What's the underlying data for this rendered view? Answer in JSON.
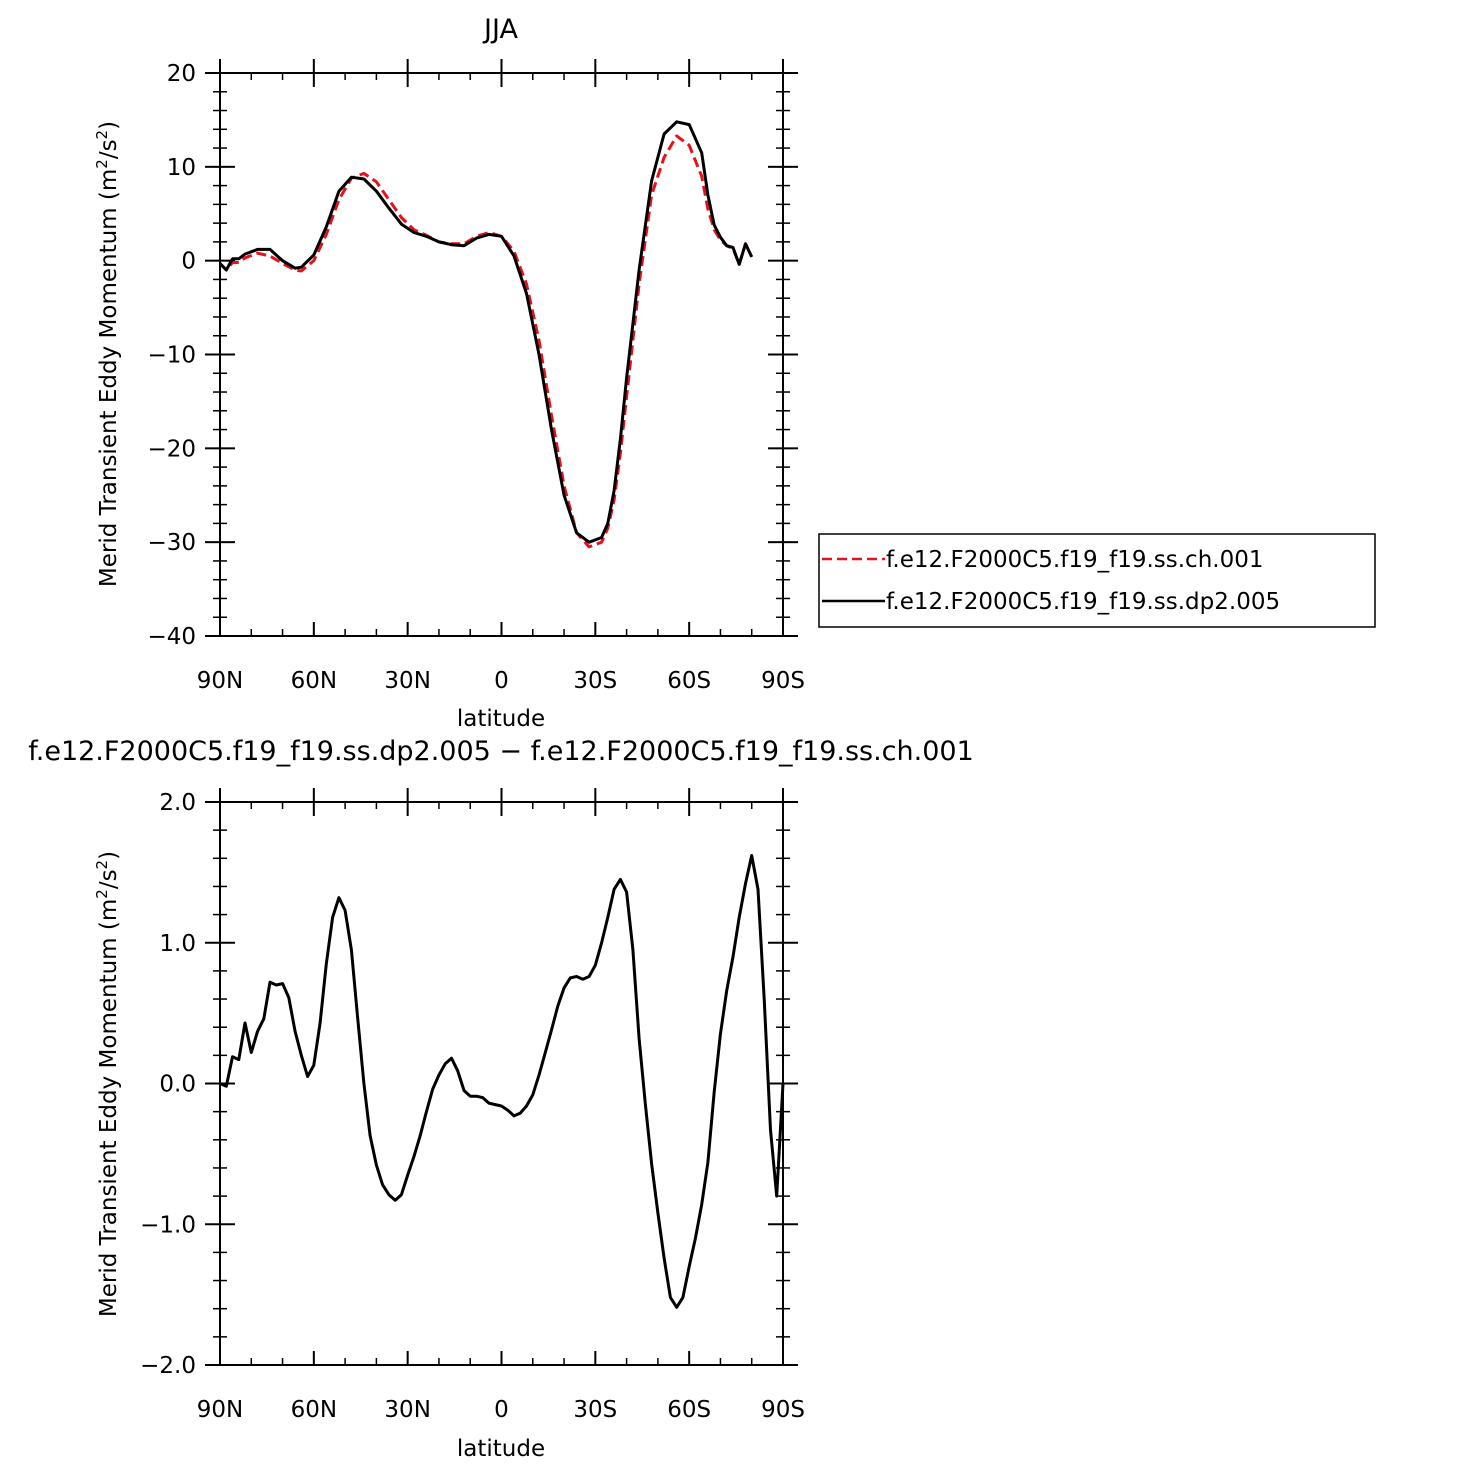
{
  "chart_data": [
    {
      "type": "line",
      "title": "JJA",
      "xlabel": "latitude",
      "ylabel": "Merid Transient Eddy Momentum (m²/s²)",
      "xlim": [
        90,
        -90
      ],
      "ylim": [
        -40,
        20
      ],
      "x_ticks": [
        90,
        60,
        30,
        0,
        -30,
        -60,
        -90
      ],
      "x_tick_labels": [
        "90N",
        "60N",
        "30N",
        "0",
        "30S",
        "60S",
        "90S"
      ],
      "y_ticks": [
        -40,
        -30,
        -20,
        -10,
        0,
        10,
        20
      ],
      "y_tick_labels": [
        "−40",
        "−30",
        "−20",
        "−10",
        "0",
        "10",
        "20"
      ],
      "legend": {
        "placement": "right",
        "entries": [
          "f.e12.F2000C5.f19_f19.ss.ch.001",
          "f.e12.F2000C5.f19_f19.ss.dp2.005"
        ]
      },
      "series": [
        {
          "name": "f.e12.F2000C5.f19_f19.ss.ch.001",
          "color": "#e8101a",
          "dash": true,
          "x": [
            90,
            88,
            86,
            84,
            82,
            78,
            74,
            70,
            66,
            64,
            60,
            56,
            52,
            48,
            44,
            40,
            36,
            32,
            28,
            24,
            20,
            16,
            12,
            8,
            4,
            0,
            -4,
            -8,
            -12,
            -16,
            -20,
            -24,
            -28,
            -32,
            -34,
            -36,
            -38,
            -40,
            -44,
            -48,
            -52,
            -56,
            -60,
            -64,
            -66,
            -68,
            -70,
            -72,
            -74,
            -76,
            -78,
            -80,
            -82,
            -84,
            -86,
            -88,
            -90
          ],
          "y": [
            -0.3,
            -1.0,
            -0.2,
            -0.2,
            0.3,
            0.8,
            0.5,
            -0.3,
            -1.0,
            -1.1,
            0.0,
            2.8,
            6.5,
            8.8,
            9.3,
            8.4,
            6.5,
            4.6,
            3.3,
            2.7,
            2.0,
            1.8,
            1.8,
            2.6,
            3.0,
            2.6,
            1.0,
            -2.5,
            -8.5,
            -16.5,
            -24.0,
            -29.0,
            -30.5,
            -30.0,
            -28.5,
            -25.5,
            -20.5,
            -14.5,
            -2.5,
            7.0,
            11.0,
            13.3,
            12.3,
            9.0,
            5.5,
            3.3,
            2.2,
            1.6,
            1.3,
            -0.4,
            1.8,
            0.4,
            null,
            null,
            null,
            null,
            null
          ]
        },
        {
          "name": "f.e12.F2000C5.f19_f19.ss.dp2.005",
          "color": "#000000",
          "dash": false,
          "x": [
            90,
            88,
            86,
            84,
            82,
            78,
            74,
            70,
            66,
            64,
            60,
            56,
            52,
            48,
            44,
            40,
            36,
            32,
            28,
            24,
            20,
            16,
            12,
            8,
            4,
            0,
            -4,
            -8,
            -12,
            -16,
            -20,
            -24,
            -28,
            -32,
            -34,
            -36,
            -38,
            -40,
            -44,
            -48,
            -52,
            -56,
            -60,
            -64,
            -66,
            -68,
            -70,
            -72,
            -74,
            -76,
            -78,
            -80,
            -82,
            -84,
            -86,
            -88,
            -90
          ],
          "y": [
            -0.3,
            -1.0,
            0.2,
            0.2,
            0.7,
            1.2,
            1.2,
            0.0,
            -0.8,
            -0.7,
            0.6,
            3.6,
            7.4,
            8.9,
            8.7,
            7.4,
            5.6,
            3.9,
            3.0,
            2.6,
            2.0,
            1.7,
            1.6,
            2.4,
            2.8,
            2.6,
            0.5,
            -3.5,
            -10.0,
            -18.0,
            -25.0,
            -29.0,
            -30.0,
            -29.5,
            -28.0,
            -24.5,
            -19.0,
            -12.5,
            -1.0,
            8.5,
            13.5,
            14.8,
            14.5,
            11.5,
            7.0,
            3.8,
            2.5,
            1.6,
            1.4,
            -0.4,
            1.8,
            0.4,
            null,
            null,
            null,
            null,
            null
          ]
        }
      ]
    },
    {
      "type": "line",
      "title": "f.e12.F2000C5.f19_f19.ss.dp2.005 − f.e12.F2000C5.f19_f19.ss.ch.001",
      "xlabel": "latitude",
      "ylabel": "Merid Transient Eddy Momentum (m²/s²)",
      "xlim": [
        90,
        -90
      ],
      "ylim": [
        -2,
        2
      ],
      "x_ticks": [
        90,
        60,
        30,
        0,
        -30,
        -60,
        -90
      ],
      "x_tick_labels": [
        "90N",
        "60N",
        "30N",
        "0",
        "30S",
        "60S",
        "90S"
      ],
      "y_ticks": [
        -2,
        -1,
        0,
        1,
        2
      ],
      "y_tick_labels": [
        "−2.0",
        "−1.0",
        "0.0",
        "1.0",
        "2.0"
      ],
      "series": [
        {
          "color": "#000000",
          "x": [
            90,
            88,
            86,
            84,
            82,
            80,
            78,
            76,
            74,
            72,
            70,
            68,
            66,
            64,
            62,
            60,
            58,
            56,
            54,
            52,
            50,
            48,
            46,
            44,
            42,
            40,
            38,
            36,
            34,
            32,
            30,
            28,
            26,
            24,
            22,
            20,
            18,
            16,
            14,
            12,
            10,
            8,
            6,
            4,
            2,
            0,
            -2,
            -4,
            -6,
            -8,
            -10,
            -12,
            -14,
            -16,
            -18,
            -20,
            -22,
            -24,
            -26,
            -28,
            -30,
            -32,
            -34,
            -36,
            -38,
            -40,
            -42,
            -44,
            -46,
            -48,
            -50,
            -52,
            -54,
            -56,
            -58,
            -60,
            -62,
            -64,
            -66,
            -68,
            -70,
            -72,
            -74,
            -76,
            -78,
            -80,
            -82,
            -84,
            -86,
            -88,
            -90
          ],
          "y": [
            0.0,
            -0.02,
            0.19,
            0.17,
            0.43,
            0.22,
            0.37,
            0.46,
            0.72,
            0.7,
            0.71,
            0.61,
            0.37,
            0.2,
            0.05,
            0.13,
            0.43,
            0.85,
            1.18,
            1.32,
            1.23,
            0.95,
            0.47,
            0.0,
            -0.37,
            -0.58,
            -0.72,
            -0.79,
            -0.83,
            -0.79,
            -0.65,
            -0.52,
            -0.37,
            -0.2,
            -0.04,
            0.06,
            0.14,
            0.18,
            0.09,
            -0.05,
            -0.09,
            -0.09,
            -0.1,
            -0.14,
            -0.15,
            -0.16,
            -0.19,
            -0.23,
            -0.21,
            -0.16,
            -0.08,
            0.06,
            0.22,
            0.38,
            0.55,
            0.68,
            0.75,
            0.76,
            0.74,
            0.76,
            0.84,
            1.0,
            1.18,
            1.38,
            1.45,
            1.36,
            0.95,
            0.32,
            -0.15,
            -0.57,
            -0.92,
            -1.24,
            -1.52,
            -1.59,
            -1.52,
            -1.3,
            -1.1,
            -0.86,
            -0.56,
            -0.06,
            0.35,
            0.66,
            0.9,
            1.18,
            1.42,
            1.62,
            1.38,
            0.6,
            -0.33,
            -0.8,
            -0.0
          ]
        }
      ]
    }
  ]
}
